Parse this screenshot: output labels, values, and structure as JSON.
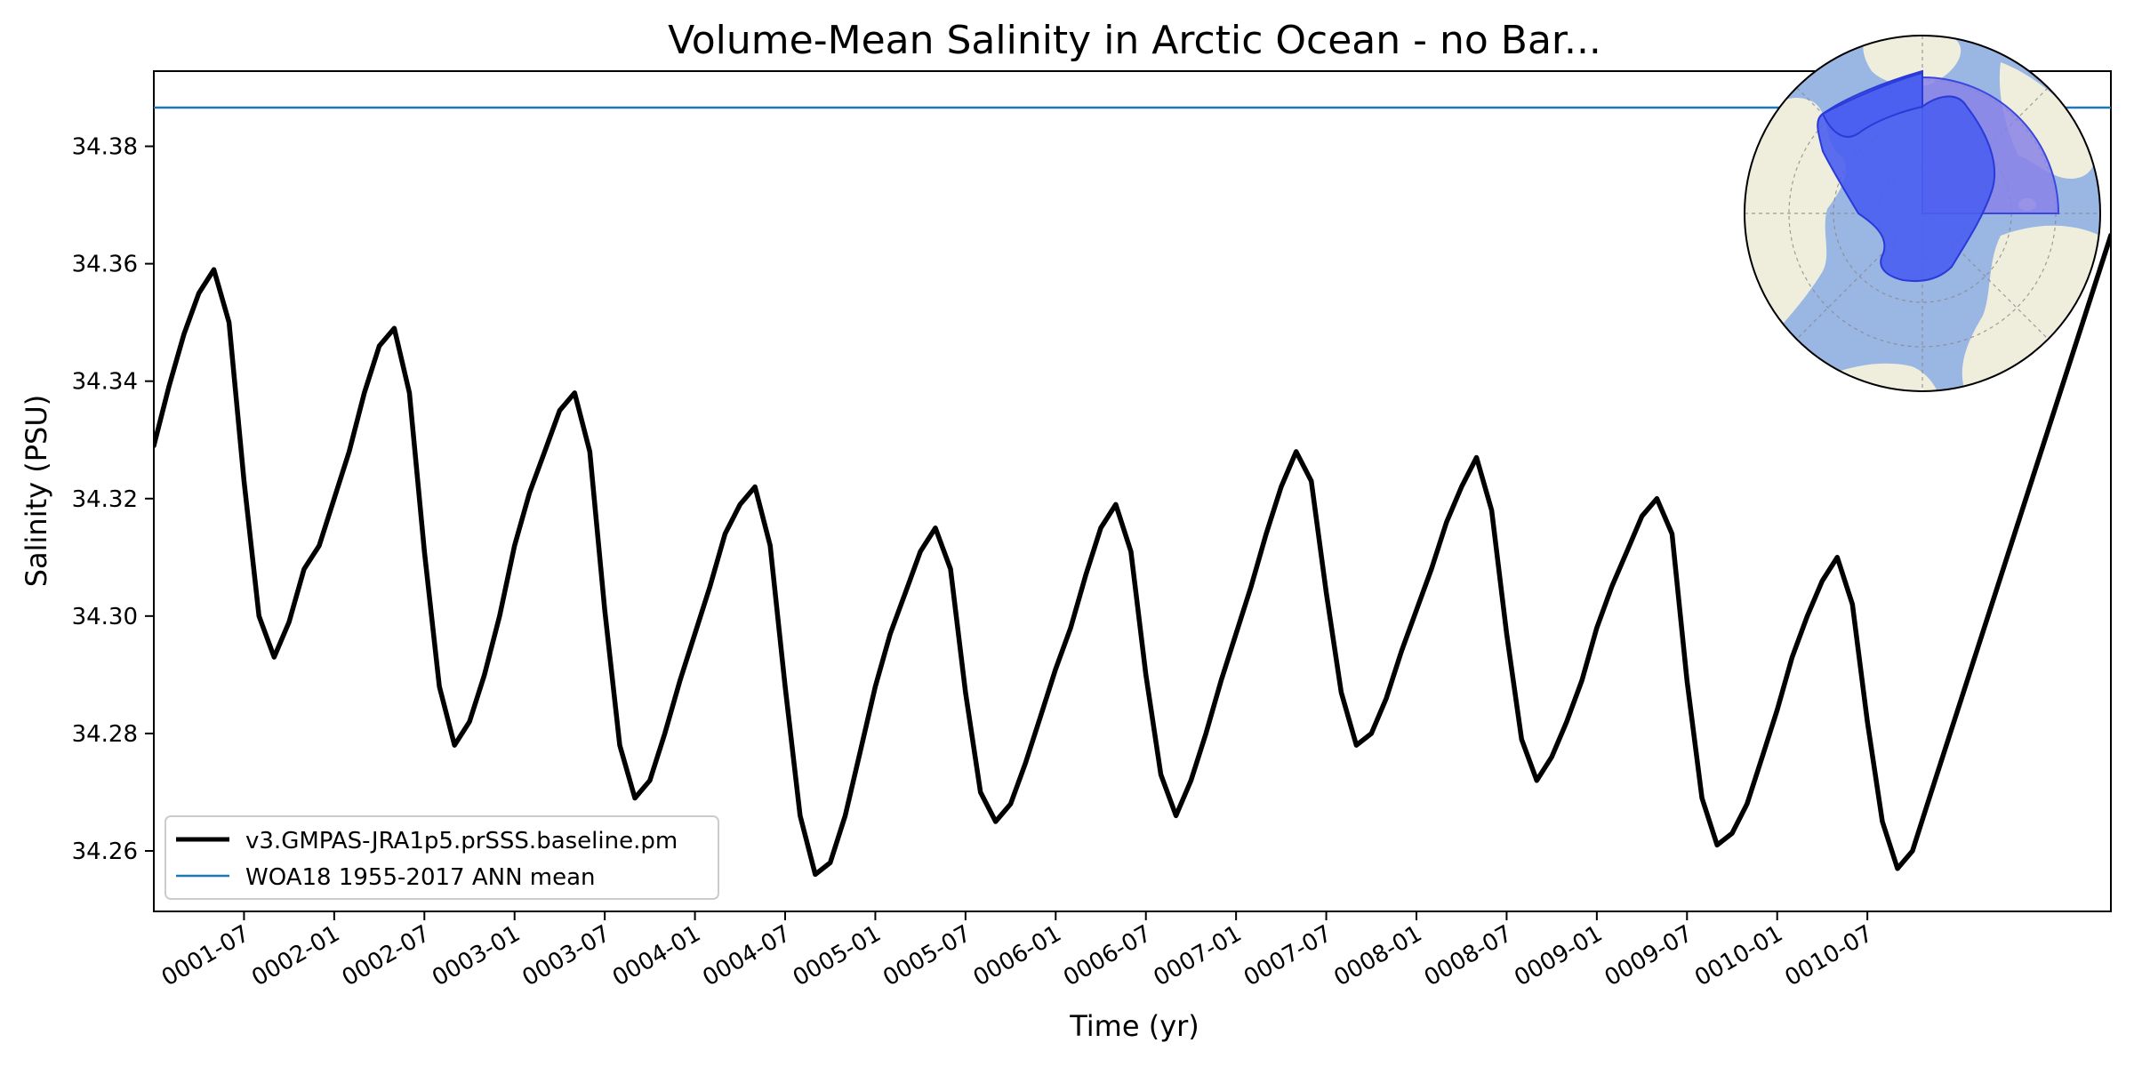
{
  "chart_data": {
    "type": "line",
    "title": "Volume-Mean Salinity in Arctic Ocean - no Bar...",
    "xlabel": "Time (yr)",
    "ylabel": "Salinity (PSU)",
    "xlim": [
      0.0,
      10.85
    ],
    "ylim": [
      34.2497,
      34.3928
    ],
    "x_ticks": [
      {
        "label": "0001-07",
        "value": 0.5
      },
      {
        "label": "0002-01",
        "value": 1.0
      },
      {
        "label": "0002-07",
        "value": 1.5
      },
      {
        "label": "0003-01",
        "value": 2.0
      },
      {
        "label": "0003-07",
        "value": 2.5
      },
      {
        "label": "0004-01",
        "value": 3.0
      },
      {
        "label": "0004-07",
        "value": 3.5
      },
      {
        "label": "0005-01",
        "value": 4.0
      },
      {
        "label": "0005-07",
        "value": 4.5
      },
      {
        "label": "0006-01",
        "value": 5.0
      },
      {
        "label": "0006-07",
        "value": 5.5
      },
      {
        "label": "0007-01",
        "value": 6.0
      },
      {
        "label": "0007-07",
        "value": 6.5
      },
      {
        "label": "0008-01",
        "value": 7.0
      },
      {
        "label": "0008-07",
        "value": 7.5
      },
      {
        "label": "0009-01",
        "value": 8.0
      },
      {
        "label": "0009-07",
        "value": 8.5
      },
      {
        "label": "0010-01",
        "value": 9.0
      },
      {
        "label": "0010-07",
        "value": 9.5
      }
    ],
    "y_ticks": [
      {
        "label": "34.26",
        "value": 34.26
      },
      {
        "label": "34.28",
        "value": 34.28
      },
      {
        "label": "34.30",
        "value": 34.3
      },
      {
        "label": "34.32",
        "value": 34.32
      },
      {
        "label": "34.34",
        "value": 34.34
      },
      {
        "label": "34.36",
        "value": 34.36
      },
      {
        "label": "34.38",
        "value": 34.38
      }
    ],
    "legend_location": "lower-left",
    "series": [
      {
        "name": "v3.GMPAS-JRA1p5.prSSS.baseline.pm",
        "color": "#000000",
        "style": "thick-solid",
        "x": [
          0.0,
          0.083,
          0.167,
          0.25,
          0.333,
          0.417,
          0.5,
          0.583,
          0.667,
          0.75,
          0.833,
          0.917,
          1.0,
          1.083,
          1.167,
          1.25,
          1.333,
          1.417,
          1.5,
          1.583,
          1.667,
          1.75,
          1.833,
          1.917,
          2.0,
          2.083,
          2.167,
          2.25,
          2.333,
          2.417,
          2.5,
          2.583,
          2.667,
          2.75,
          2.833,
          2.917,
          3.0,
          3.083,
          3.167,
          3.25,
          3.333,
          3.417,
          3.5,
          3.583,
          3.667,
          3.75,
          3.833,
          3.917,
          4.0,
          4.083,
          4.167,
          4.25,
          4.333,
          4.417,
          4.5,
          4.583,
          4.667,
          4.75,
          4.833,
          4.917,
          5.0,
          5.083,
          5.167,
          5.25,
          5.333,
          5.417,
          5.5,
          5.583,
          5.667,
          5.75,
          5.833,
          5.917,
          6.0,
          6.083,
          6.167,
          6.25,
          6.333,
          6.417,
          6.5,
          6.583,
          6.667,
          6.75,
          6.833,
          6.917,
          7.0,
          7.083,
          7.167,
          7.25,
          7.333,
          7.417,
          7.5,
          7.583,
          7.667,
          7.75,
          7.833,
          7.917,
          8.0,
          8.083,
          8.167,
          8.25,
          8.333,
          8.417,
          8.5,
          8.583,
          8.667,
          8.75,
          8.833,
          8.917,
          9.0,
          9.083,
          9.167,
          9.25,
          9.333,
          9.417,
          9.5,
          9.583,
          9.667,
          9.75,
          9.833,
          9.917
        ],
        "y": [
          34.329,
          34.339,
          34.348,
          34.355,
          34.359,
          34.35,
          34.323,
          34.3,
          34.293,
          34.299,
          34.308,
          34.312,
          34.32,
          34.328,
          34.338,
          34.346,
          34.349,
          34.338,
          34.311,
          34.288,
          34.278,
          34.282,
          34.29,
          34.3,
          34.312,
          34.321,
          34.328,
          34.335,
          34.338,
          34.328,
          34.301,
          34.278,
          34.269,
          34.272,
          34.28,
          34.289,
          34.297,
          34.305,
          34.314,
          34.319,
          34.322,
          34.312,
          34.288,
          34.266,
          34.256,
          34.258,
          34.266,
          34.277,
          34.288,
          34.297,
          34.304,
          34.311,
          34.315,
          34.308,
          34.287,
          34.27,
          34.265,
          34.268,
          34.275,
          34.283,
          34.291,
          34.298,
          34.307,
          34.315,
          34.319,
          34.311,
          34.29,
          34.273,
          34.266,
          34.272,
          34.28,
          34.289,
          34.297,
          34.305,
          34.314,
          34.322,
          34.328,
          34.323,
          34.304,
          34.287,
          34.278,
          34.28,
          34.286,
          34.294,
          34.301,
          34.308,
          34.316,
          34.322,
          34.327,
          34.318,
          34.297,
          34.279,
          34.272,
          34.276,
          34.282,
          34.289,
          34.298,
          34.305,
          34.311,
          34.317,
          34.32,
          34.314,
          34.289,
          34.269,
          34.261,
          34.263,
          34.268,
          34.276,
          34.284,
          34.293,
          34.3,
          34.306,
          34.31,
          34.302,
          34.282,
          34.265,
          34.257,
          34.26,
          34.268,
          34.276
        ]
      },
      {
        "name": "WOA18 1955-2017 ANN mean",
        "color": "#1f77b4",
        "style": "thin-solid",
        "constant": 34.3866
      }
    ]
  },
  "map_inset": {
    "description_label": "Arctic Ocean region",
    "ocean_color": "#9ab6e3",
    "land_color": "#efeedd",
    "region_color": "#4a5ef0",
    "sector_color": "#8a82e8"
  }
}
